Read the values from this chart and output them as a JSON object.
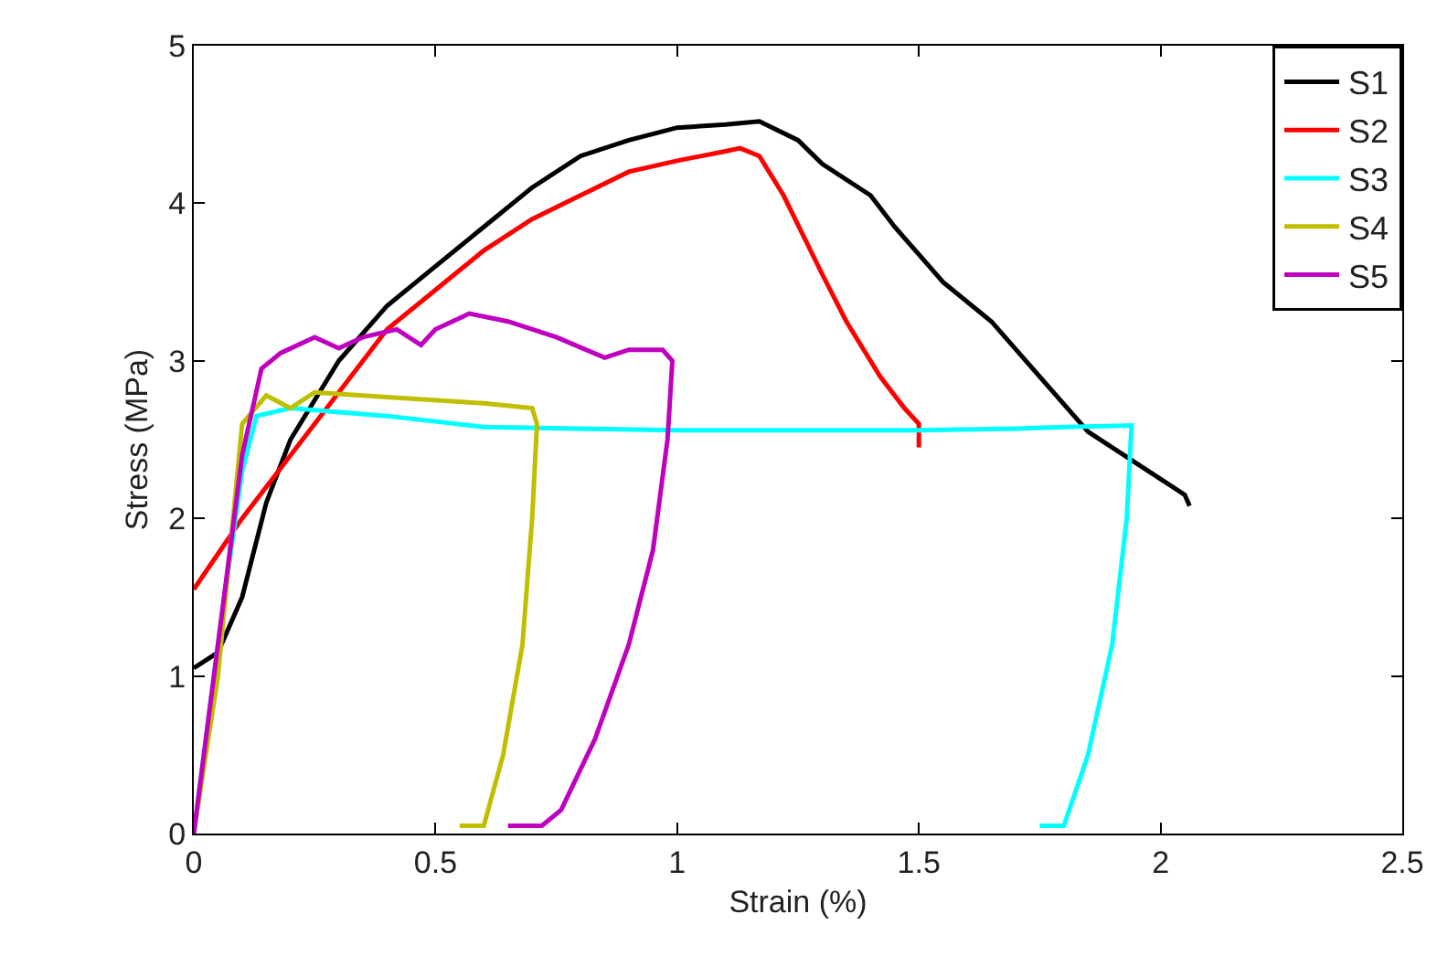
{
  "chart_data": {
    "type": "line",
    "xlabel": "Strain (%)",
    "ylabel": "Stress (MPa)",
    "xlim": [
      0,
      2.5
    ],
    "ylim": [
      0,
      5
    ],
    "xticks": [
      0,
      0.5,
      1,
      1.5,
      2,
      2.5
    ],
    "yticks": [
      0,
      1,
      2,
      3,
      4,
      5
    ],
    "grid": false,
    "legend": "top right",
    "marker": "none",
    "line_style": "solid",
    "series": [
      {
        "name": "S1",
        "color": "#000000",
        "x": [
          0,
          0.05,
          0.1,
          0.15,
          0.2,
          0.3,
          0.4,
          0.5,
          0.6,
          0.7,
          0.8,
          0.9,
          1.0,
          1.1,
          1.17,
          1.25,
          1.3,
          1.4,
          1.45,
          1.55,
          1.65,
          1.75,
          1.85,
          1.95,
          2.0,
          2.05,
          2.06
        ],
        "values": [
          1.05,
          1.15,
          1.5,
          2.1,
          2.5,
          3.0,
          3.35,
          3.6,
          3.85,
          4.1,
          4.3,
          4.4,
          4.48,
          4.5,
          4.52,
          4.4,
          4.25,
          4.05,
          3.85,
          3.5,
          3.25,
          2.9,
          2.55,
          2.35,
          2.25,
          2.15,
          2.08
        ]
      },
      {
        "name": "S2",
        "color": "#ff0000",
        "x": [
          0,
          0.1,
          0.2,
          0.3,
          0.4,
          0.5,
          0.6,
          0.7,
          0.8,
          0.9,
          1.0,
          1.1,
          1.13,
          1.17,
          1.22,
          1.3,
          1.35,
          1.42,
          1.47,
          1.5,
          1.5
        ],
        "values": [
          1.55,
          2.0,
          2.4,
          2.8,
          3.2,
          3.45,
          3.7,
          3.9,
          4.05,
          4.2,
          4.27,
          4.33,
          4.35,
          4.3,
          4.05,
          3.55,
          3.25,
          2.9,
          2.7,
          2.6,
          2.45
        ]
      },
      {
        "name": "S3",
        "color": "#00ffff",
        "x": [
          0,
          0.05,
          0.1,
          0.13,
          0.2,
          0.4,
          0.6,
          1.0,
          1.5,
          1.7,
          1.8,
          1.94,
          1.93,
          1.9,
          1.85,
          1.8,
          1.75
        ],
        "values": [
          0,
          1.2,
          2.3,
          2.65,
          2.7,
          2.65,
          2.58,
          2.56,
          2.56,
          2.57,
          2.58,
          2.59,
          2.0,
          1.2,
          0.5,
          0.05,
          0.05
        ]
      },
      {
        "name": "S4",
        "color": "#bfbf00",
        "x": [
          0,
          0.05,
          0.1,
          0.15,
          0.2,
          0.25,
          0.4,
          0.6,
          0.7,
          0.71,
          0.7,
          0.68,
          0.64,
          0.6,
          0.55
        ],
        "values": [
          0,
          1.0,
          2.6,
          2.78,
          2.7,
          2.8,
          2.77,
          2.73,
          2.7,
          2.6,
          2.0,
          1.2,
          0.5,
          0.05,
          0.05
        ]
      },
      {
        "name": "S5",
        "color": "#bf00bf",
        "x": [
          0,
          0.05,
          0.1,
          0.14,
          0.18,
          0.25,
          0.3,
          0.35,
          0.42,
          0.47,
          0.5,
          0.57,
          0.65,
          0.75,
          0.85,
          0.9,
          0.97,
          0.99,
          0.98,
          0.95,
          0.9,
          0.83,
          0.76,
          0.72,
          0.65
        ],
        "values": [
          0,
          1.2,
          2.4,
          2.95,
          3.05,
          3.15,
          3.08,
          3.15,
          3.2,
          3.1,
          3.2,
          3.3,
          3.25,
          3.15,
          3.02,
          3.07,
          3.07,
          3.0,
          2.5,
          1.8,
          1.2,
          0.6,
          0.15,
          0.05,
          0.05
        ]
      }
    ]
  }
}
